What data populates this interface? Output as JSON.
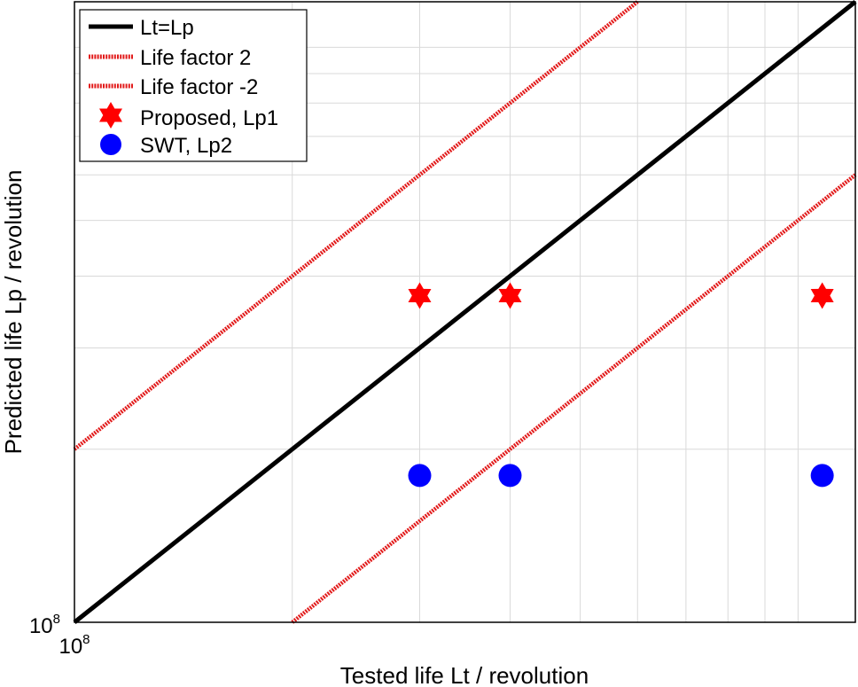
{
  "chart_data": {
    "type": "scatter",
    "xlabel": "Tested life Lt / revolution",
    "ylabel": "Predicted life Lp / revolution",
    "x_scale": "log",
    "y_scale": "log",
    "xlim": [
      100000000,
      1200000000
    ],
    "ylim": [
      100000000,
      1200000000
    ],
    "x_tick_labels": [
      {
        "base": "10",
        "exp": "8"
      }
    ],
    "y_tick_labels": [
      {
        "base": "10",
        "exp": "8"
      }
    ],
    "x_gridlines": [
      200000000,
      300000000,
      400000000,
      500000000,
      600000000,
      700000000,
      800000000,
      900000000,
      1000000000
    ],
    "y_gridlines": [
      200000000,
      300000000,
      400000000,
      500000000,
      600000000,
      700000000,
      800000000,
      900000000,
      1000000000
    ],
    "grid": true,
    "legend": {
      "placement": "top-left",
      "entries": [
        {
          "label": "Lt=Lp",
          "style": "solid-line",
          "color": "#000000"
        },
        {
          "label": "Life factor 2",
          "style": "dotted-line",
          "color": "#e21b1b"
        },
        {
          "label": "Life factor -2",
          "style": "dotted-line",
          "color": "#e21b1b"
        },
        {
          "label": "Proposed, Lp1",
          "style": "star-marker",
          "color": "#ff0000"
        },
        {
          "label": "SWT, Lp2",
          "style": "circle-marker",
          "color": "#0000ff"
        }
      ]
    },
    "lines": [
      {
        "name": "Lt=Lp",
        "factor": 1,
        "color": "#000000"
      },
      {
        "name": "Life factor 2",
        "factor": 2,
        "color": "#e21b1b"
      },
      {
        "name": "Life factor -2",
        "factor": 0.5,
        "color": "#e21b1b"
      }
    ],
    "series": [
      {
        "name": "Proposed, Lp1",
        "marker": "star",
        "color": "#ff0000",
        "x": [
          300000000,
          400000000,
          1080000000
        ],
        "y": [
          370000000,
          370000000,
          370000000
        ]
      },
      {
        "name": "SWT, Lp2",
        "marker": "circle",
        "color": "#0000ff",
        "x": [
          300000000,
          400000000,
          1080000000
        ],
        "y": [
          180000000,
          180000000,
          180000000
        ]
      }
    ]
  }
}
